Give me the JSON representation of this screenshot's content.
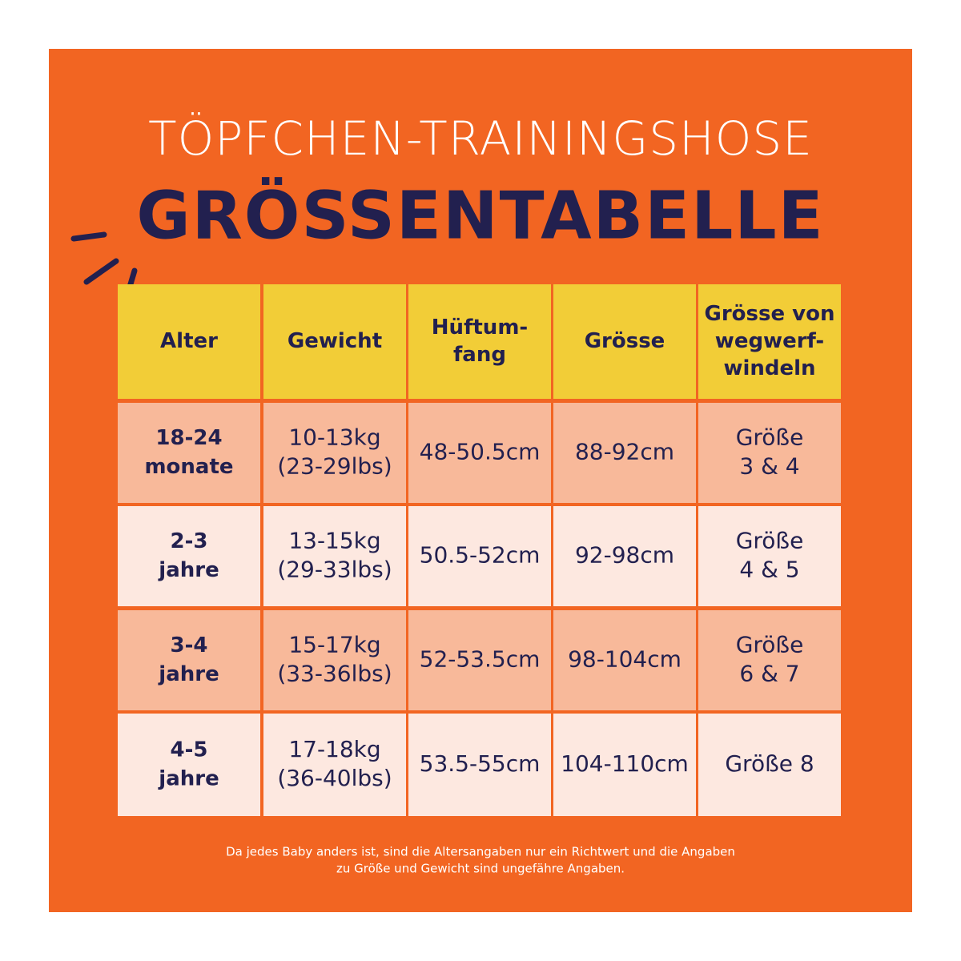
{
  "header": {
    "subtitle": "TÖPFCHEN-TRAININGSHOSE",
    "title": "GRÖSSENTABELLE"
  },
  "table": {
    "columns": [
      [
        "Alter"
      ],
      [
        "Gewicht"
      ],
      [
        "Hüftum-",
        "fang"
      ],
      [
        "Grösse"
      ],
      [
        "Grösse von",
        "wegwerf-",
        "windeln"
      ]
    ],
    "rows": [
      [
        [
          "18-24",
          "monate"
        ],
        [
          "10-13kg",
          "(23-29lbs)"
        ],
        [
          "48-50.5cm"
        ],
        [
          "88-92cm"
        ],
        [
          "Größe",
          "3 & 4"
        ]
      ],
      [
        [
          "2-3",
          "jahre"
        ],
        [
          "13-15kg",
          "(29-33lbs)"
        ],
        [
          "50.5-52cm"
        ],
        [
          "92-98cm"
        ],
        [
          "Größe",
          "4 & 5"
        ]
      ],
      [
        [
          "3-4",
          "jahre"
        ],
        [
          "15-17kg",
          "(33-36lbs)"
        ],
        [
          "52-53.5cm"
        ],
        [
          "98-104cm"
        ],
        [
          "Größe",
          "6 & 7"
        ]
      ],
      [
        [
          "4-5",
          "jahre"
        ],
        [
          "17-18kg",
          "(36-40lbs)"
        ],
        [
          "53.5-55cm"
        ],
        [
          "104-110cm"
        ],
        [
          "Größe 8"
        ]
      ]
    ]
  },
  "footnote": [
    "Da jedes Baby anders ist, sind die Altersangaben nur ein Richtwert und die Angaben",
    "zu Größe und Gewicht sind ungefähre Angaben."
  ]
}
